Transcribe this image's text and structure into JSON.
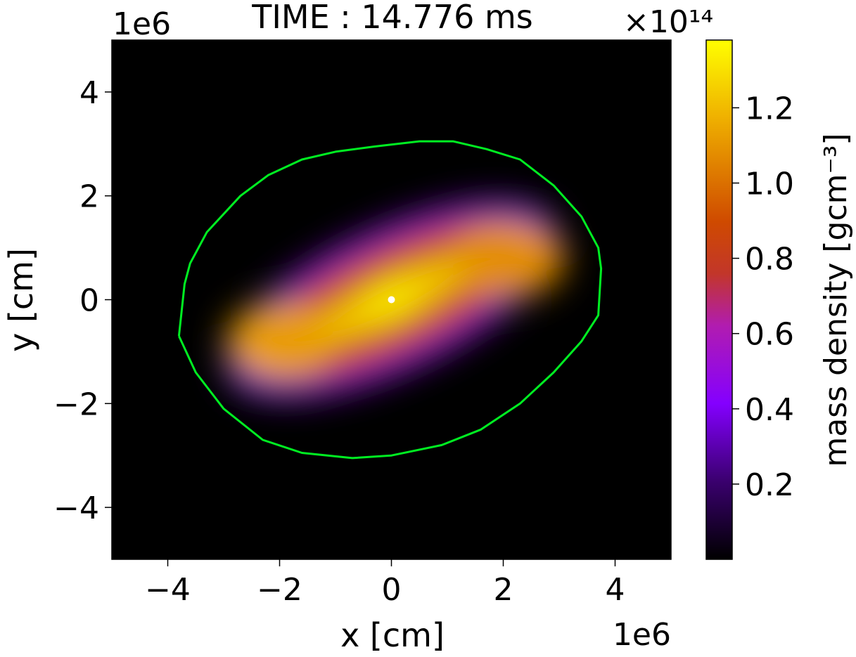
{
  "chart_data": {
    "type": "heatmap",
    "title": "TIME : 14.776 ms",
    "xlabel": "x [cm]",
    "ylabel": "y [cm]",
    "x_offset_text": "1e6",
    "y_offset_text": "1e6",
    "xlim": [
      -5000000,
      5000000
    ],
    "ylim": [
      -5000000,
      5000000
    ],
    "x_ticks": [
      -4000000,
      -2000000,
      0,
      2000000,
      4000000
    ],
    "x_tick_labels": [
      "−4",
      "−2",
      "0",
      "2",
      "4"
    ],
    "y_ticks": [
      -4000000,
      -2000000,
      0,
      2000000,
      4000000
    ],
    "y_tick_labels": [
      "−4",
      "−2",
      "0",
      "2",
      "4"
    ],
    "grid": false,
    "colormap": "gnuplot",
    "colorbar": {
      "label": "mass density [gcm⁻³]",
      "offset_text": "×10¹⁴",
      "range": [
        0,
        138000000000000
      ],
      "ticks": [
        20000000000000,
        40000000000000,
        60000000000000,
        80000000000000,
        100000000000000,
        120000000000000
      ],
      "tick_labels": [
        "0.2",
        "0.4",
        "0.6",
        "0.8",
        "1.0",
        "1.2"
      ]
    },
    "density_field_components": [
      {
        "cx": 0,
        "cy": 0,
        "rx": 3200000,
        "ry": 1350000,
        "angle_deg": 25,
        "level": 36000000000000
      },
      {
        "cx": 0,
        "cy": 0,
        "rx": 2850000,
        "ry": 1050000,
        "angle_deg": 25,
        "level": 86000000000000
      },
      {
        "cx": -2000000,
        "cy": -800000,
        "rx": 950000,
        "ry": 750000,
        "angle_deg": 0,
        "level": 112000000000000
      },
      {
        "cx": 2100000,
        "cy": 800000,
        "rx": 1000000,
        "ry": 750000,
        "angle_deg": 0,
        "level": 108000000000000
      },
      {
        "cx": 0,
        "cy": 0,
        "rx": 1500000,
        "ry": 400000,
        "angle_deg": 25,
        "level": 126000000000000
      },
      {
        "cx": 0,
        "cy": 0,
        "rx": 500000,
        "ry": 250000,
        "angle_deg": 25,
        "level": 136000000000000
      }
    ],
    "contour": {
      "color": "#00ee22",
      "points": [
        [
          -3800000,
          -700000
        ],
        [
          -3700000,
          300000
        ],
        [
          -3600000,
          700000
        ],
        [
          -3300000,
          1300000
        ],
        [
          -2700000,
          2000000
        ],
        [
          -2200000,
          2400000
        ],
        [
          -1600000,
          2700000
        ],
        [
          -1000000,
          2850000
        ],
        [
          -300000,
          2950000
        ],
        [
          500000,
          3050000
        ],
        [
          1100000,
          3050000
        ],
        [
          1700000,
          2900000
        ],
        [
          2300000,
          2700000
        ],
        [
          2900000,
          2200000
        ],
        [
          3400000,
          1600000
        ],
        [
          3700000,
          1000000
        ],
        [
          3750000,
          600000
        ],
        [
          3700000,
          -300000
        ],
        [
          3400000,
          -800000
        ],
        [
          2900000,
          -1400000
        ],
        [
          2300000,
          -2000000
        ],
        [
          1600000,
          -2500000
        ],
        [
          900000,
          -2800000
        ],
        [
          0,
          -3000000
        ],
        [
          -700000,
          -3050000
        ],
        [
          -1600000,
          -2950000
        ],
        [
          -2300000,
          -2700000
        ],
        [
          -3000000,
          -2100000
        ],
        [
          -3500000,
          -1400000
        ],
        [
          -3800000,
          -700000
        ]
      ]
    },
    "marker": {
      "x": 0,
      "y": 0,
      "color": "#ffffff"
    }
  }
}
